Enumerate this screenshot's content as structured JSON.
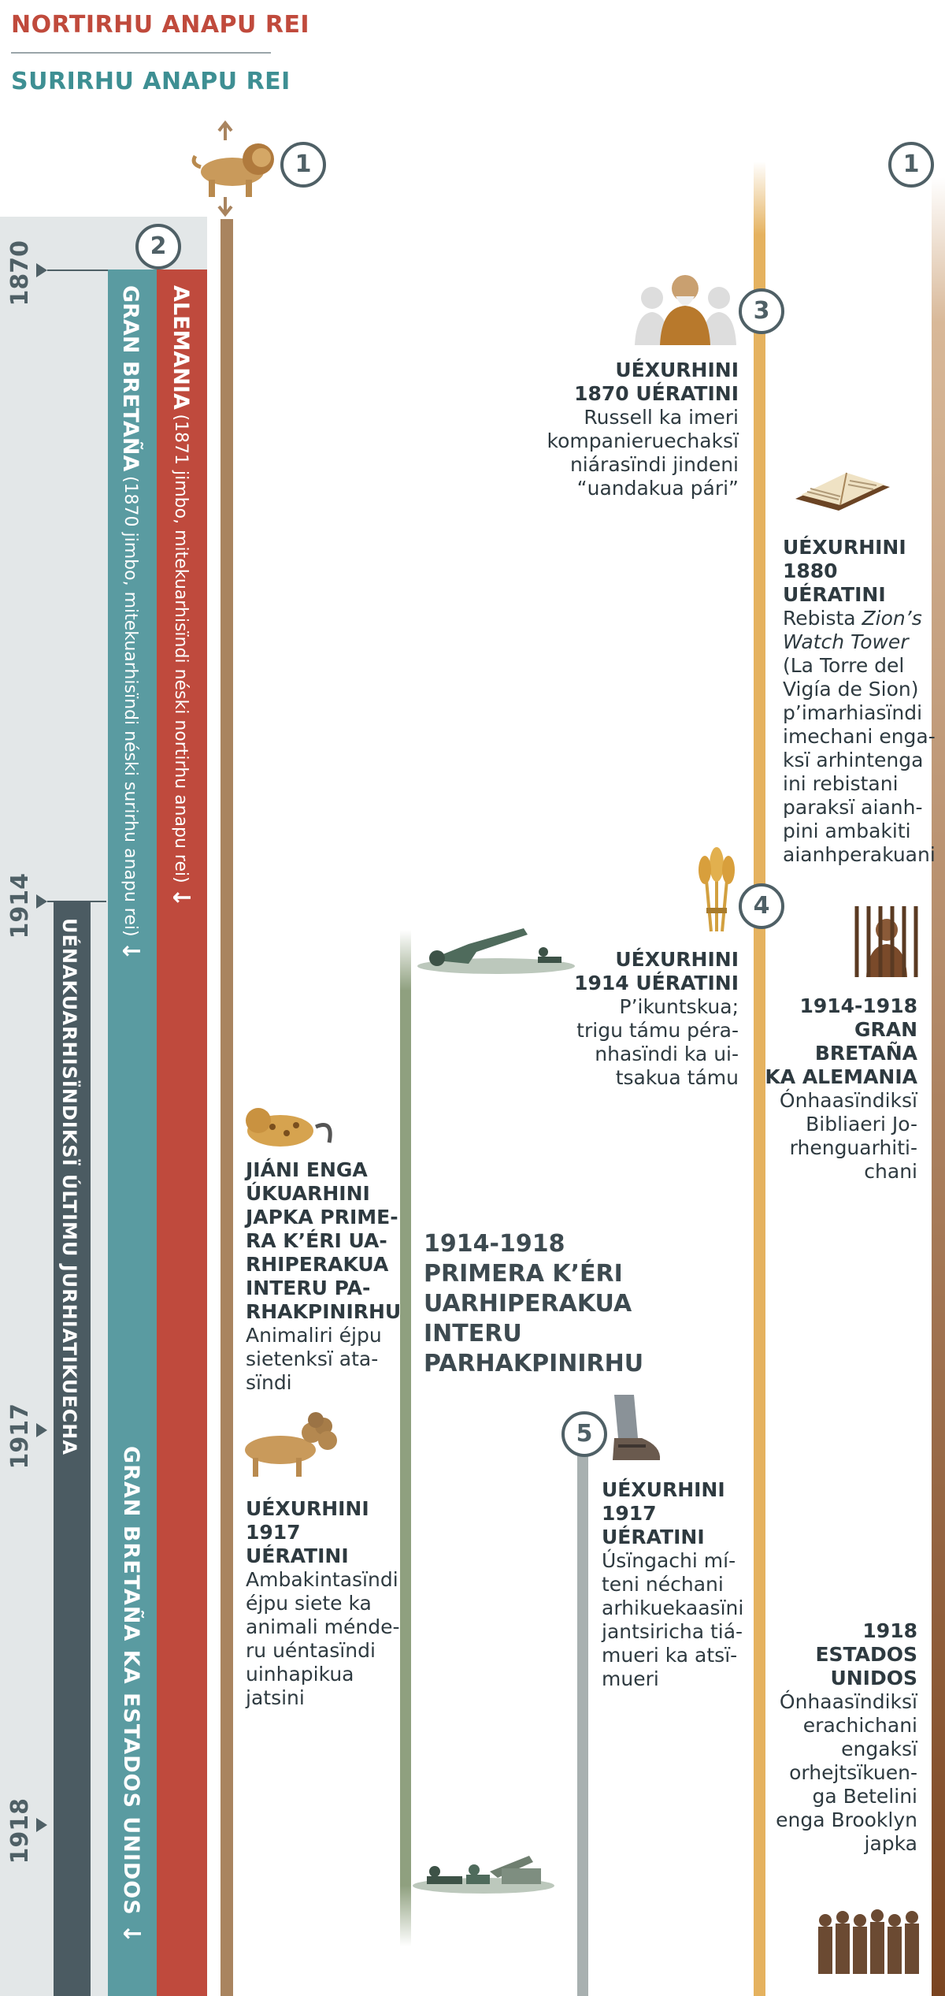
{
  "legend": {
    "north": "NORTIRHU ANAPU REI",
    "south": "SURIRHU ANAPU REI",
    "north_color": "#c04a3c",
    "south_color": "#3e8f93"
  },
  "badges": [
    "1",
    "1",
    "2",
    "3",
    "4",
    "5"
  ],
  "years": [
    "1870",
    "1914",
    "1917",
    "1918"
  ],
  "bands": {
    "germany_title": "ALEMANIA",
    "germany_note": "(1871 jimbo, mitekuarhisïndi néski nortirhu anapu rei)",
    "britain_title": "GRAN BRETAÑA",
    "britain_note": "(1870 jimbo, mitekuarhisïndi néski surirhu anapu rei)",
    "last_days": "UÉNAKUARHISÏNDIKSÏ ÚLTIMU JURHIATIKUECHA",
    "anglo_american": "GRAN BRETAÑA KA ESTADOS UNIDOS",
    "arrow": "↓"
  },
  "events": {
    "e1870": {
      "title1": "UÉXURHINI",
      "title2": "1870 UÉRATINI",
      "body": [
        "Russell ka imeri",
        "kompanieruechaksï",
        "niárasïndi jindeni",
        "“uandakua pári”"
      ]
    },
    "e1880": {
      "title1": "UÉXURHINI",
      "title2": "1880 UÉRATINI",
      "body_pre": "Rebista ",
      "body_italic1": "Zion’s",
      "body_italic2": "Watch Tower",
      "body": [
        "(La Torre del",
        "Vigía de Sion)",
        "p’imarhiasïndi",
        "imechani enga-",
        "ksï arhintenga",
        "ini rebistani",
        "paraksï aianh-",
        "pini ambakiti",
        "aianhperakuani"
      ]
    },
    "e1914": {
      "title1": "UÉXURHINI",
      "title2": "1914 UÉRATINI",
      "body": [
        "P’ikuntskua;",
        "trigu támu péra-",
        "nhasïndi ka ui-",
        "tsakua támu"
      ]
    },
    "e1914_1918": {
      "title1": "1914-1918",
      "title2": "GRAN BRETAÑA",
      "title3": "KA ALEMANIA",
      "body": [
        "Ónhaasïndiksï",
        "Bibliaeri Jo-",
        "rhenguarhiti-",
        "chani"
      ]
    },
    "beast": {
      "title": [
        "JIÁNI ENGA",
        "ÚKUARHINI",
        "JAPKA PRIME-",
        "RA K’ÉRI UA-",
        "RHIPERAKUA",
        "INTERU PA-",
        "RHAKPINIRHU"
      ],
      "body": [
        "Animaliri éjpu",
        "sietenksï ata-",
        "sïndi"
      ]
    },
    "war": {
      "title": [
        "1914-1918",
        "PRIMERA K’ÉRI",
        "UARHIPERAKUA",
        "INTERU",
        "PARHAKPINIRHU"
      ]
    },
    "e1917a": {
      "title1": "UÉXURHINI",
      "title2": "1917 UÉRATINI",
      "body": [
        "Ambakintasïndi",
        "éjpu siete ka",
        "animali ménde-",
        "ru uéntasïndi",
        "uinhapikua",
        "jatsini"
      ]
    },
    "e1917b": {
      "title1": "UÉXURHINI",
      "title2": "1917 UÉRATINI",
      "body": [
        "Úsïngachi mí-",
        "teni néchani",
        "arhikuekaasïni",
        "jantsiricha tiá-",
        "mueri ka atsï-",
        "mueri"
      ]
    },
    "e1918": {
      "title1": "1918",
      "title2": "ESTADOS",
      "title3": "UNIDOS",
      "body": [
        "Ónhaasïndiksï",
        "erachichani",
        "engaksï",
        "orhejtsïkuen-",
        "ga Betelini",
        "enga Brooklyn",
        "japka"
      ]
    }
  },
  "icons": [
    "lion-icon",
    "leopard-icon",
    "beast-icon",
    "man-icon",
    "book-icon",
    "wheat-icon",
    "prisoner-icon",
    "soldiers-icon",
    "cannon-icon",
    "feet-icon",
    "crowd-icon"
  ]
}
